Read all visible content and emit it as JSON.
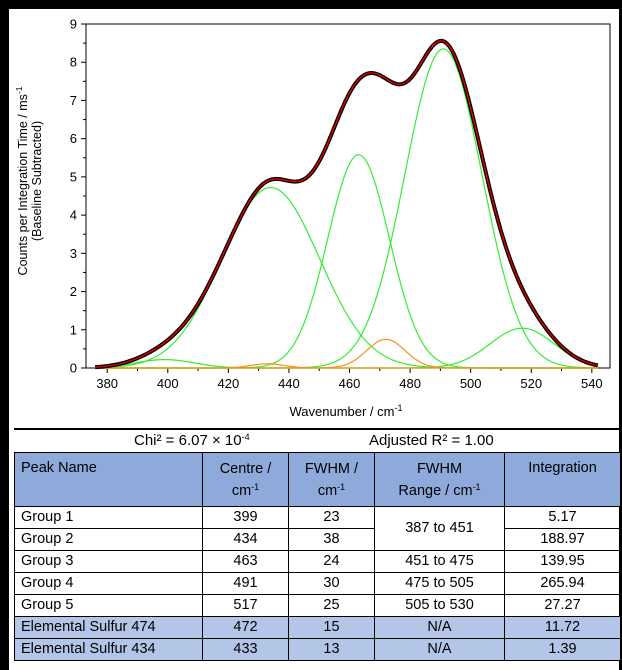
{
  "chart_data": {
    "type": "line",
    "xlabel": "Wavenumber / cm",
    "xlabel_sup": "-1",
    "ylabel_line1": "Counts per Integration Time / ms",
    "ylabel_sup": "-1",
    "ylabel_line2": "(Baseline Subtracted)",
    "xlim": [
      373,
      546
    ],
    "ylim": [
      0,
      9
    ],
    "xticks": [
      "380",
      "400",
      "420",
      "440",
      "460",
      "480",
      "500",
      "520",
      "540"
    ],
    "yticks": [
      "0",
      "1",
      "2",
      "3",
      "4",
      "5",
      "6",
      "7",
      "8",
      "9"
    ],
    "peaks": [
      {
        "center": 399,
        "height": 0.22,
        "fwhm": 23,
        "color": "#33ee33"
      },
      {
        "center": 434,
        "height": 4.72,
        "fwhm": 38,
        "color": "#33ee33"
      },
      {
        "center": 463,
        "height": 5.58,
        "fwhm": 24,
        "color": "#33ee33"
      },
      {
        "center": 491,
        "height": 8.35,
        "fwhm": 30,
        "color": "#33ee33"
      },
      {
        "center": 517,
        "height": 1.04,
        "fwhm": 25,
        "color": "#33ee33"
      },
      {
        "center": 472,
        "height": 0.75,
        "fwhm": 15,
        "color": "#ff8c1a"
      },
      {
        "center": 433,
        "height": 0.11,
        "fwhm": 13,
        "color": "#ff8c1a"
      }
    ],
    "data_color": "#000000",
    "fit_color": "#e00000"
  },
  "stats": {
    "chi_label": "Chi² = 6.07 × 10",
    "chi_exp": "-4",
    "r2_label": "Adjusted R² = 1.00"
  },
  "table": {
    "headers": {
      "peak_name": "Peak Name",
      "centre": "Centre /",
      "fwhm": "FWHM /",
      "range_top": "FWHM",
      "range_bottom": "Range / cm",
      "integration": "Integration",
      "unit": "cm",
      "unit_sup": "-1"
    },
    "rows": [
      {
        "name": "Group 1",
        "centre": "399",
        "fwhm": "23",
        "integration": "5.17"
      },
      {
        "name": "Group 2",
        "centre": "434",
        "fwhm": "38",
        "integration": "188.97"
      },
      {
        "name": "Group 3",
        "centre": "463",
        "fwhm": "24",
        "range": "451 to 475",
        "integration": "139.95"
      },
      {
        "name": "Group 4",
        "centre": "491",
        "fwhm": "30",
        "range": "475 to 505",
        "integration": "265.94"
      },
      {
        "name": "Group 5",
        "centre": "517",
        "fwhm": "25",
        "range": "505 to 530",
        "integration": "27.27"
      },
      {
        "name": "Elemental Sulfur 474",
        "centre": "472",
        "fwhm": "15",
        "range": "N/A",
        "integration": "11.72"
      },
      {
        "name": "Elemental Sulfur 434",
        "centre": "433",
        "fwhm": "13",
        "range": "N/A",
        "integration": "1.39"
      }
    ],
    "merged_range": "387 to 451"
  }
}
